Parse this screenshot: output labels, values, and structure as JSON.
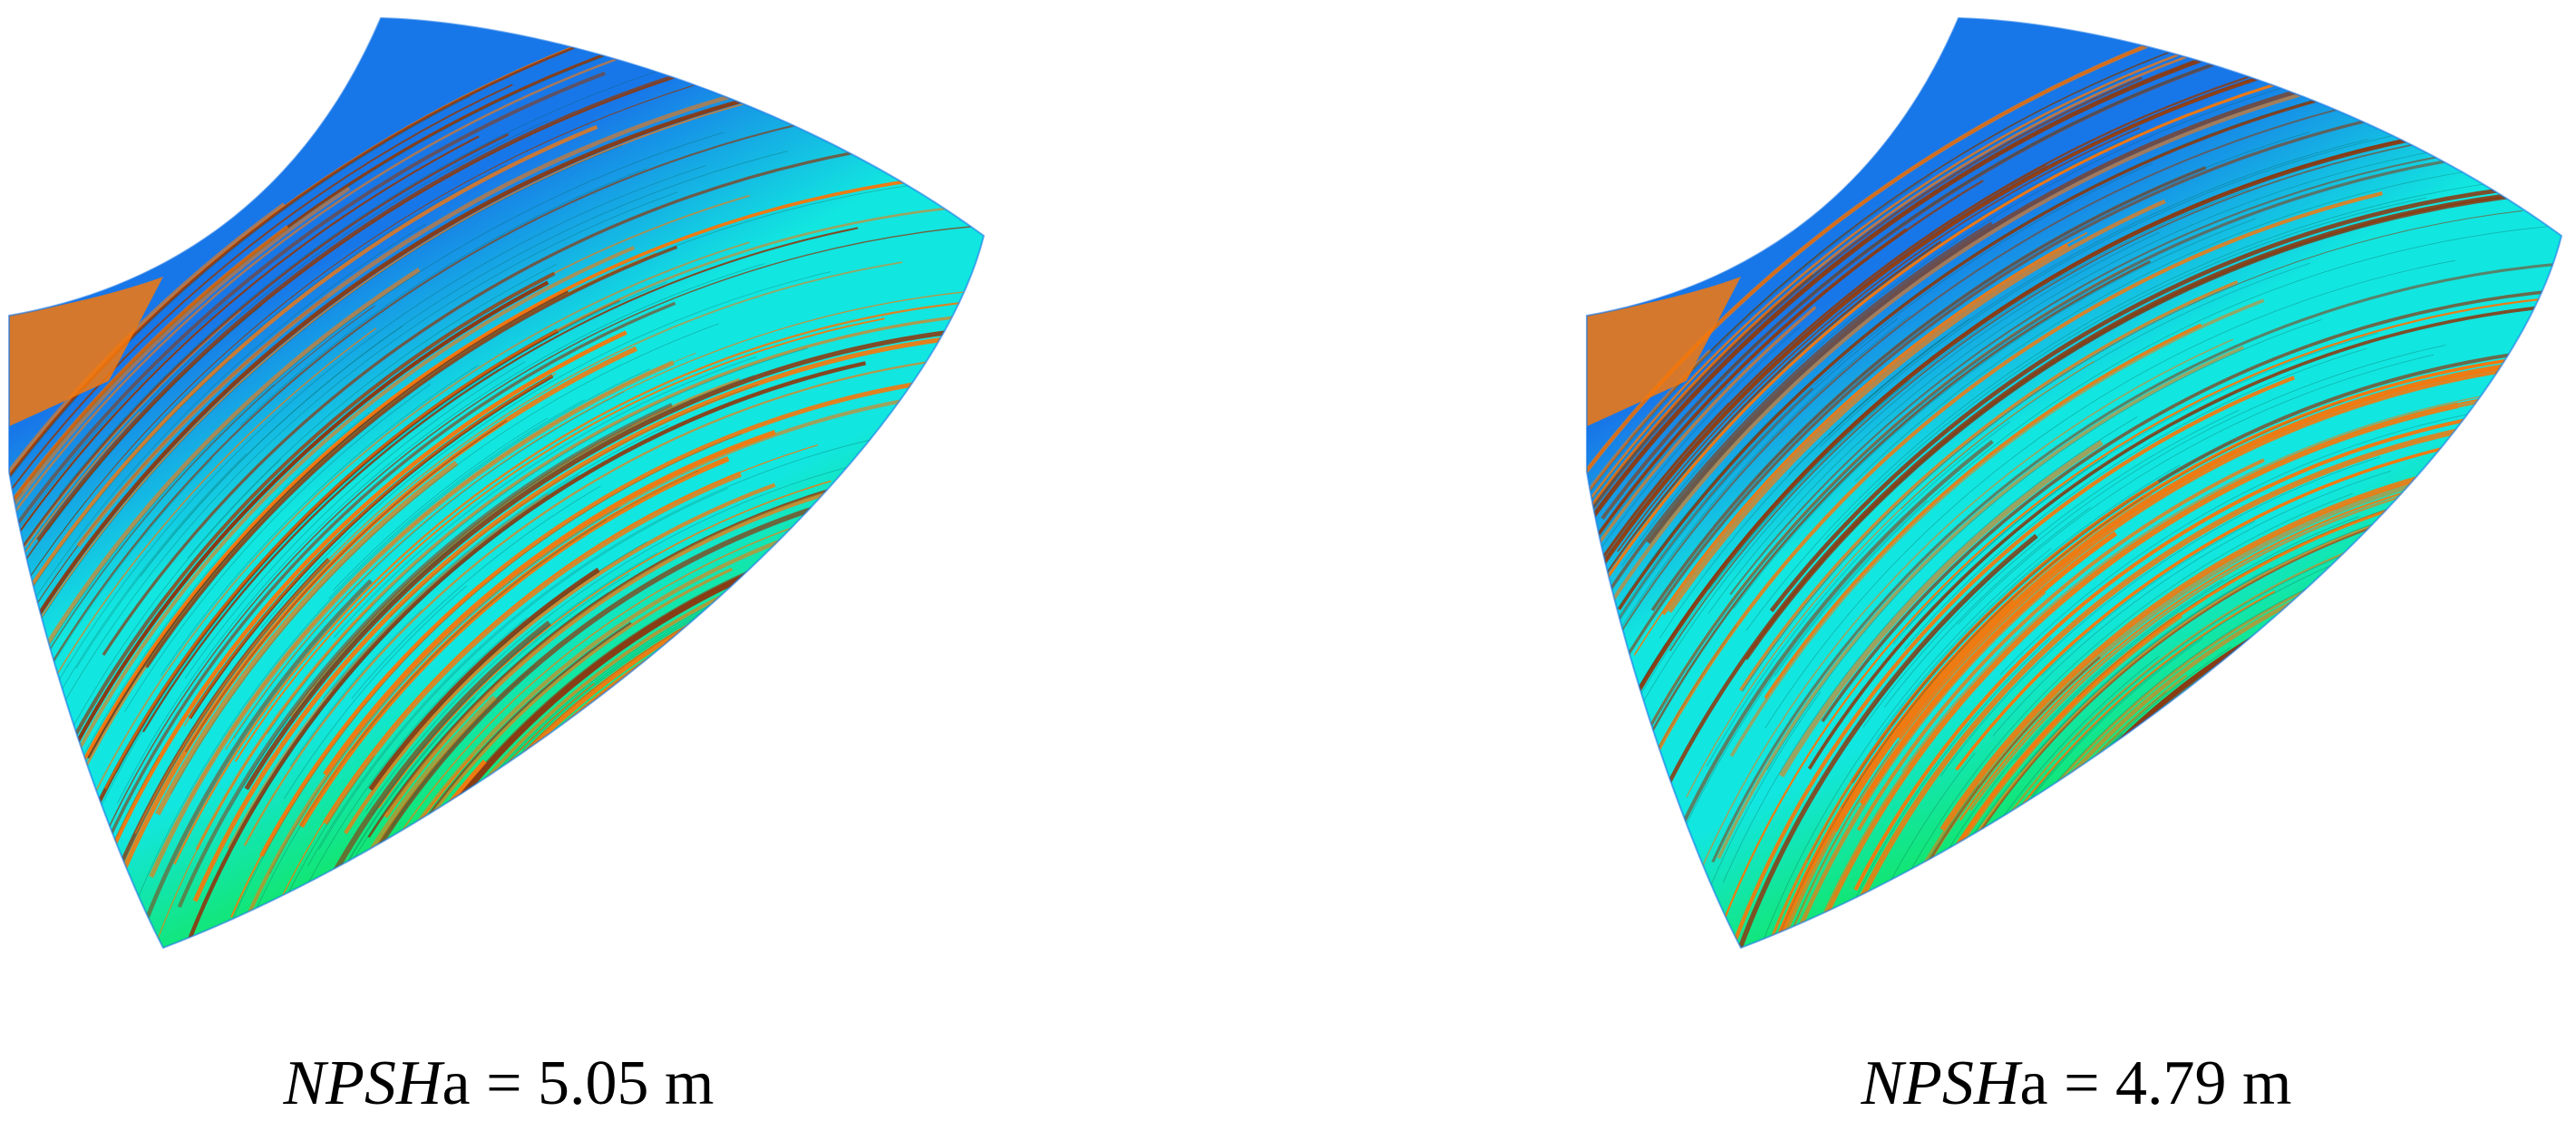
{
  "panels": [
    {
      "caption": {
        "symbol": "NPSH",
        "subscript": "a",
        "equals": " = ",
        "value": "5.05",
        "unit": " m"
      },
      "palette": {
        "green": "#12e63a",
        "cyan": "#12e6e0",
        "blue": "#1877e8",
        "orange": "#f5780c",
        "brown": "#8a3a12"
      },
      "streak_seed": 7
    },
    {
      "caption": {
        "symbol": "NPSH",
        "subscript": "a",
        "equals": " = ",
        "value": "4.79",
        "unit": " m"
      },
      "palette": {
        "green": "#12e63a",
        "cyan": "#12e6e0",
        "blue": "#1877e8",
        "orange": "#f5780c",
        "brown": "#8a3a12"
      },
      "streak_seed": 13
    }
  ]
}
